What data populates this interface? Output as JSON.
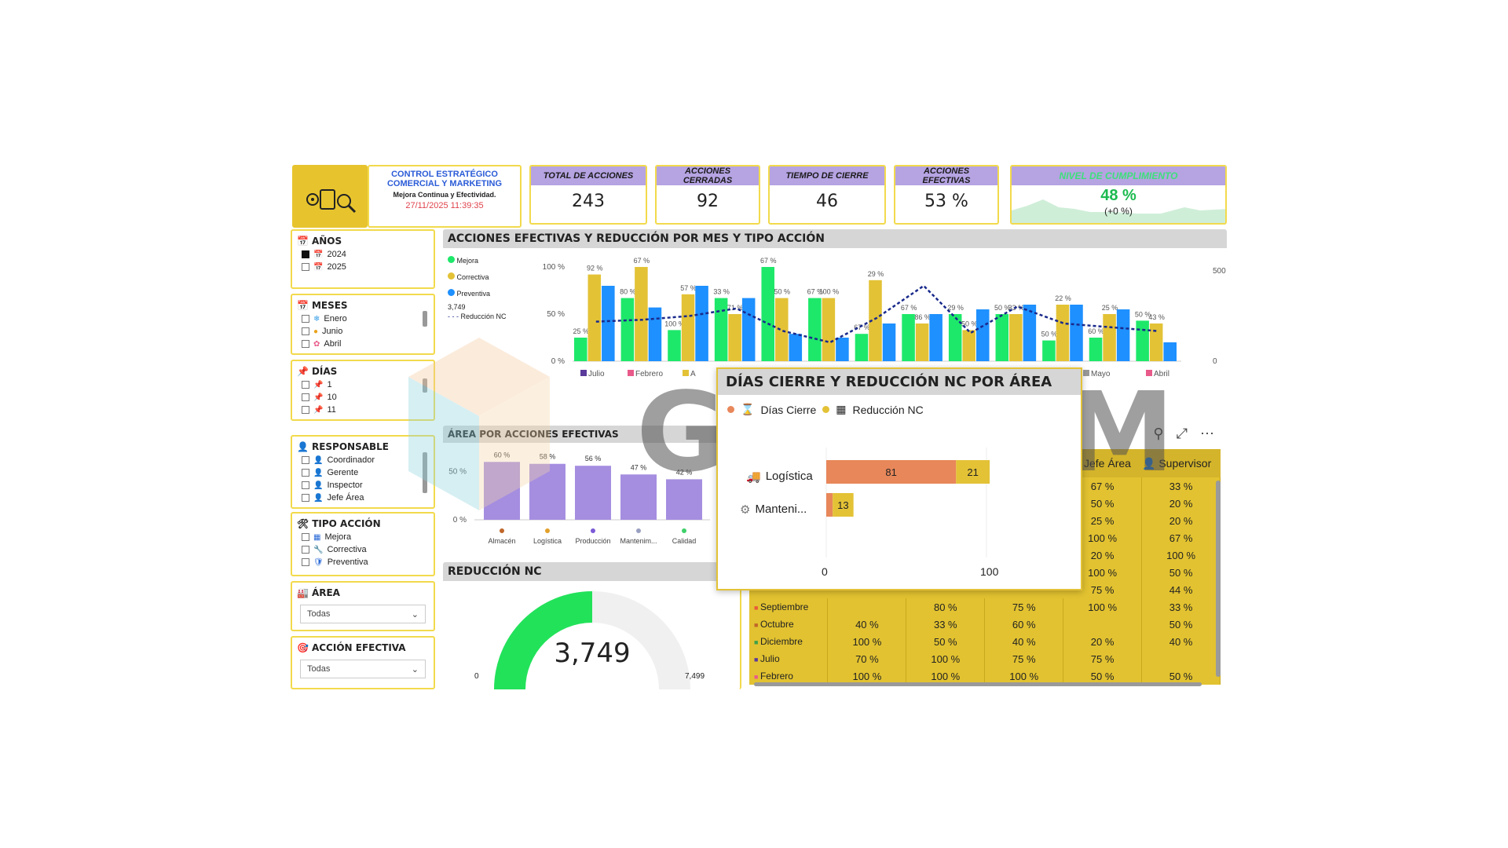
{
  "header": {
    "title_line1": "CONTROL ESTRATÉGICO",
    "title_line2": "COMERCIAL Y MARKETING",
    "subtitle": "Mejora Continua y Efectividad.",
    "datetime": "27/11/2025  11:39:35"
  },
  "kpis": {
    "total": {
      "label": "TOTAL DE ACCIONES",
      "value": "243"
    },
    "cerradas": {
      "label": "ACCIONES CERRADAS",
      "value": "92"
    },
    "tiempo": {
      "label": "TIEMPO DE CIERRE",
      "value": "46"
    },
    "efectivas": {
      "label": "ACCIONES EFECTIVAS",
      "value": "53 %"
    },
    "cumplimiento": {
      "label": "NIVEL DE CUMPLIMIENTO",
      "value": "48 %",
      "delta": "(+0 %)"
    }
  },
  "slicers": {
    "anios": {
      "title": "AÑOS",
      "items": [
        "2024",
        "2025"
      ],
      "checked": [
        true,
        false
      ]
    },
    "meses": {
      "title": "MESES",
      "items": [
        "Enero",
        "Junio",
        "Abril"
      ]
    },
    "dias": {
      "title": "DÍAS",
      "items": [
        "1",
        "10",
        "11"
      ]
    },
    "responsable": {
      "title": "RESPONSABLE",
      "items": [
        "Coordinador",
        "Gerente",
        "Inspector",
        "Jefe Área"
      ]
    },
    "tipo": {
      "title": "TIPO ACCIÓN",
      "items": [
        "Mejora",
        "Correctiva",
        "Preventiva"
      ]
    },
    "area": {
      "title": "ÁREA",
      "value": "Todas"
    },
    "accion": {
      "title": "ACCIÓN EFECTIVA",
      "value": "Todas"
    }
  },
  "main_chart": {
    "title": "ACCIONES EFECTIVAS Y REDUCCIÓN POR MES Y TIPO ACCIÓN",
    "legend": [
      "Mejora",
      "Correctiva",
      "Preventiva",
      "Reducción NC"
    ],
    "line_label": "3,749",
    "y_left": [
      "100 %",
      "50 %",
      "0 %"
    ],
    "y_right": [
      "500",
      "0"
    ],
    "x_labels": [
      "Julio",
      "Febrero",
      "A",
      "Mayo",
      "Abril"
    ]
  },
  "area_chart": {
    "title": "ÁREA POR ACCIONES EFECTIVAS",
    "y_labels": [
      "50 %",
      "0 %"
    ],
    "bar_labels": [
      "60 %",
      "58 %",
      "56 %",
      "47 %",
      "42 %"
    ],
    "categories": [
      "Almacén",
      "Logística",
      "Producción",
      "Mantenim...",
      "Calidad"
    ]
  },
  "gauge": {
    "title": "REDUCCIÓN NC",
    "value": "3,749",
    "min": "0",
    "max": "7,499",
    "fraction": 0.5
  },
  "table": {
    "headers": [
      "Jefe Área",
      "Supervisor"
    ],
    "rows_top": [
      [
        "67 %",
        "33 %"
      ],
      [
        "50 %",
        "20 %"
      ],
      [
        "25 %",
        "20 %"
      ],
      [
        "100 %",
        "67 %"
      ],
      [
        "20 %",
        "100 %"
      ],
      [
        "100 %",
        "50 %"
      ],
      [
        "75 %",
        "44 %"
      ]
    ],
    "rows": [
      {
        "label": "Septiembre",
        "c1": "",
        "c2": "80 %",
        "c3": "75 %",
        "c4": "100 %",
        "c5": "33 %"
      },
      {
        "label": "Octubre",
        "c1": "40 %",
        "c2": "33 %",
        "c3": "60 %",
        "c4": "",
        "c5": "50 %"
      },
      {
        "label": "Diciembre",
        "c1": "100 %",
        "c2": "50 %",
        "c3": "40 %",
        "c4": "20 %",
        "c5": "40 %"
      },
      {
        "label": "Julio",
        "c1": "70 %",
        "c2": "100 %",
        "c3": "75 %",
        "c4": "75 %",
        "c5": ""
      },
      {
        "label": "Febrero",
        "c1": "100 %",
        "c2": "100 %",
        "c3": "100 %",
        "c4": "50 %",
        "c5": "50 %"
      }
    ]
  },
  "tooltip": {
    "title": "DÍAS CIERRE Y REDUCCIÓN NC POR ÁREA",
    "legend1": "Días Cierre",
    "legend2": "Reducción NC",
    "rows": [
      {
        "label": "Logística",
        "dias": "81",
        "reduccion": "21"
      },
      {
        "label": "Manteni...",
        "dias": "",
        "reduccion": "13"
      }
    ],
    "axis": [
      "0",
      "100"
    ]
  },
  "watermark": "GODIUM",
  "chart_data": [
    {
      "type": "bar",
      "title": "ACCIONES EFECTIVAS Y REDUCCIÓN POR MES Y TIPO ACCIÓN",
      "series": [
        {
          "name": "Mejora",
          "values": [
            25,
            67,
            33,
            67,
            100,
            67,
            29,
            50,
            50,
            50,
            22,
            25,
            43
          ]
        },
        {
          "name": "Correctiva",
          "values": [
            92,
            100,
            71,
            50,
            67,
            67,
            86,
            40,
            33,
            50,
            60,
            50,
            40
          ]
        },
        {
          "name": "Preventiva",
          "values": [
            80,
            57,
            80,
            67,
            29,
            25,
            40,
            50,
            55,
            60,
            60,
            55,
            20
          ]
        },
        {
          "name": "Reducción NC",
          "values": [
            210,
            220,
            240,
            280,
            160,
            100,
            230,
            400,
            150,
            290,
            200,
            180,
            160
          ]
        }
      ],
      "bar_labels": [
        "25 %",
        "92 %",
        "80 %",
        "67 %",
        "100 %",
        "57 %",
        "33 %",
        "71 %",
        "67 %",
        "50 %",
        "67 %",
        "100 %",
        "67 %",
        "29 %",
        "67 %",
        "86 %",
        "29 %",
        "50 %",
        "50 %",
        "33 %",
        "50 %",
        "22 %",
        "60 %",
        "25 %",
        "50 %",
        "43 %",
        "20 %"
      ],
      "ylim_left": [
        0,
        100
      ],
      "ylim_right": [
        0,
        500
      ]
    },
    {
      "type": "bar",
      "title": "ÁREA POR ACCIONES EFECTIVAS",
      "categories": [
        "Almacén",
        "Logística",
        "Producción",
        "Mantenim...",
        "Calidad"
      ],
      "values": [
        60,
        58,
        56,
        47,
        42
      ],
      "ylim": [
        0,
        70
      ]
    },
    {
      "type": "bar",
      "title": "DÍAS CIERRE Y REDUCCIÓN NC POR ÁREA",
      "categories": [
        "Logística",
        "Manteni..."
      ],
      "series": [
        {
          "name": "Días Cierre",
          "values": [
            81,
            4
          ]
        },
        {
          "name": "Reducción NC",
          "values": [
            21,
            13
          ]
        }
      ],
      "xlim": [
        0,
        110
      ]
    }
  ],
  "colors": {
    "mejora": "#1ee86a",
    "correctiva": "#e3c236",
    "preventiva": "#1e90ff",
    "line": "#1a2a8c",
    "purple": "#a58ee0",
    "yellow": "#f2da4c",
    "gauge": "#22e25a",
    "orange": "#e8875a"
  }
}
